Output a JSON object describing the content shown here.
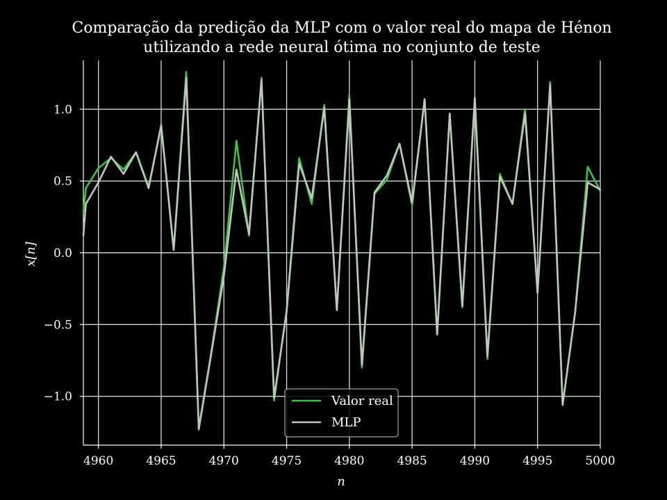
{
  "chart_data": {
    "type": "line",
    "title_lines": [
      "Comparação da predição da MLP com o valor real do mapa de Hénon",
      "utilizando a rede neural ótima no conjunto de teste"
    ],
    "xlabel": "n",
    "ylabel": "x[n]",
    "xlim": [
      4958.8,
      5000
    ],
    "ylim": [
      -1.34,
      1.34
    ],
    "xticks": [
      4960,
      4965,
      4970,
      4975,
      4980,
      4985,
      4990,
      4995,
      5000
    ],
    "yticks": [
      {
        "value": 1.0,
        "label": "1.0"
      },
      {
        "value": 0.5,
        "label": "0.5"
      },
      {
        "value": 0.0,
        "label": "0.0"
      },
      {
        "value": -0.5,
        "label": "−0.5"
      },
      {
        "value": -1.0,
        "label": "−1.0"
      }
    ],
    "grid": true,
    "legend_position": "lower center",
    "x": [
      4958.8,
      4959,
      4960,
      4961,
      4962,
      4963,
      4964,
      4965,
      4966,
      4967,
      4968,
      4969,
      4970,
      4971,
      4972,
      4973,
      4974,
      4975,
      4976,
      4977,
      4978,
      4979,
      4980,
      4981,
      4982,
      4983,
      4984,
      4985,
      4986,
      4987,
      4988,
      4989,
      4990,
      4991,
      4992,
      4993,
      4994,
      4995,
      4996,
      4997,
      4998,
      4999,
      5000
    ],
    "series": [
      {
        "name": "Valor real",
        "color": "#3cc43c",
        "values": [
          0.28,
          0.45,
          0.59,
          0.66,
          0.58,
          0.7,
          0.46,
          0.88,
          0.02,
          1.26,
          -1.22,
          -0.69,
          -0.1,
          0.78,
          0.12,
          1.22,
          -1.03,
          -0.4,
          0.66,
          0.34,
          1.03,
          -0.4,
          1.1,
          -0.8,
          0.41,
          0.51,
          0.76,
          0.33,
          1.07,
          -0.57,
          0.97,
          -0.38,
          1.07,
          -0.74,
          0.55,
          0.34,
          1.0,
          -0.28,
          1.19,
          -1.06,
          -0.41,
          0.6,
          0.43
        ]
      },
      {
        "name": "MLP",
        "color": "#bcc8bc",
        "values": [
          0.12,
          0.34,
          0.49,
          0.67,
          0.55,
          0.7,
          0.45,
          0.89,
          0.02,
          1.22,
          -1.23,
          -0.7,
          -0.16,
          0.58,
          0.13,
          1.2,
          -1.01,
          -0.41,
          0.62,
          0.38,
          1.01,
          -0.4,
          1.07,
          -0.78,
          0.42,
          0.54,
          0.76,
          0.35,
          1.07,
          -0.57,
          0.97,
          -0.37,
          1.08,
          -0.72,
          0.53,
          0.34,
          0.97,
          -0.28,
          1.17,
          -1.06,
          -0.41,
          0.49,
          0.44
        ]
      }
    ]
  }
}
